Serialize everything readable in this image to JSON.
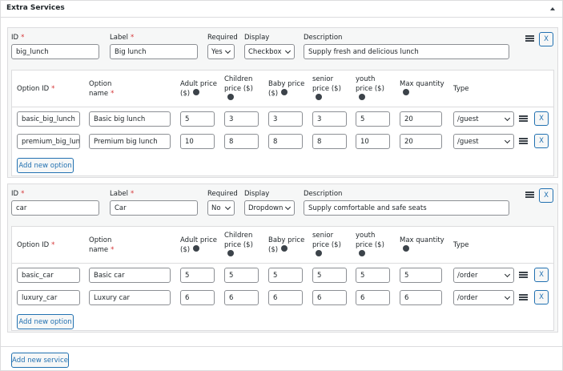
{
  "panel": {
    "title": "Extra Services"
  },
  "labels": {
    "id": "ID",
    "label": "Label",
    "required": "Required",
    "display": "Display",
    "description": "Description",
    "required_mark": "*",
    "option_id": "Option ID",
    "option_name": "Option name",
    "adult_price": "Adult price ($)",
    "children_price": "Children price ($)",
    "baby_price": "Baby price ($)",
    "senior_price": "senior price ($)",
    "youth_price": "youth price ($)",
    "max_quantity": "Max quantity",
    "type": "Type",
    "remove": "X",
    "add_option": "Add new option",
    "add_service": "Add new service"
  },
  "services": [
    {
      "id": "big_lunch",
      "label": "Big lunch",
      "required": "Yes",
      "display": "Checkbox",
      "description": "Supply fresh and delicious lunch",
      "options": [
        {
          "option_id": "basic_big_lunch",
          "name": "Basic big lunch",
          "adult": 5,
          "children": 3,
          "baby": 3,
          "senior": 3,
          "youth": 5,
          "max_quantity": 20,
          "type": "/guest"
        },
        {
          "option_id": "premium_big_lun",
          "name": "Premium big lunch",
          "adult": 10,
          "children": 8,
          "baby": 8,
          "senior": 8,
          "youth": 10,
          "max_quantity": 20,
          "type": "/guest"
        }
      ]
    },
    {
      "id": "car",
      "label": "Car",
      "required": "No",
      "display": "Dropdown",
      "description": "Supply comfortable and safe seats",
      "options": [
        {
          "option_id": "basic_car",
          "name": "Basic car",
          "adult": 5,
          "children": 5,
          "baby": 5,
          "senior": 5,
          "youth": 5,
          "max_quantity": 5,
          "type": "/order"
        },
        {
          "option_id": "luxury_car",
          "name": "Luxury car",
          "adult": 6,
          "children": 6,
          "baby": 6,
          "senior": 6,
          "youth": 6,
          "max_quantity": 6,
          "type": "/order"
        }
      ]
    }
  ]
}
